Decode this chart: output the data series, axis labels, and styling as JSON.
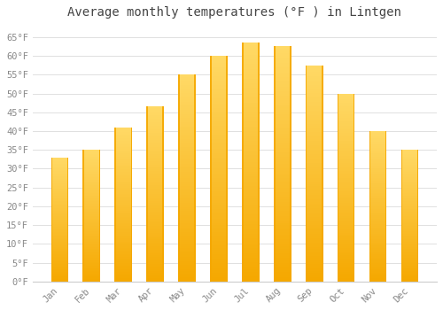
{
  "title": "Average monthly temperatures (°F ) in Lintgen",
  "months": [
    "Jan",
    "Feb",
    "Mar",
    "Apr",
    "May",
    "Jun",
    "Jul",
    "Aug",
    "Sep",
    "Oct",
    "Nov",
    "Dec"
  ],
  "values": [
    33,
    35,
    41,
    46.5,
    55,
    60,
    63.5,
    62.5,
    57.5,
    50,
    40,
    35
  ],
  "bar_color_bottom": "#F5A800",
  "bar_color_top": "#FFD966",
  "background_color": "#ffffff",
  "grid_color": "#e0e0e0",
  "tick_label_color": "#888888",
  "title_color": "#444444",
  "ylim": [
    0,
    68
  ],
  "yticks": [
    0,
    5,
    10,
    15,
    20,
    25,
    30,
    35,
    40,
    45,
    50,
    55,
    60,
    65
  ],
  "title_fontsize": 10,
  "tick_fontsize": 7.5,
  "figsize": [
    5.0,
    3.5
  ],
  "dpi": 100,
  "bar_width": 0.55
}
